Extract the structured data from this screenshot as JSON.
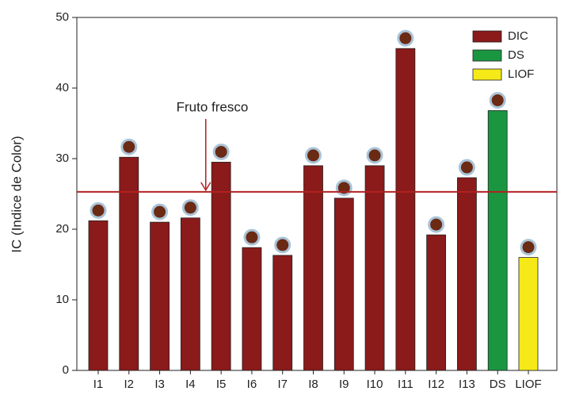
{
  "chart_data": {
    "type": "bar",
    "y_label": "IC (Indice de Color)",
    "categories": [
      "I1",
      "I2",
      "I3",
      "I4",
      "I5",
      "I6",
      "I7",
      "I8",
      "I9",
      "I10",
      "I11",
      "I12",
      "I13",
      "DS",
      "LIOF"
    ],
    "series": [
      {
        "name": "DIC",
        "color": "#8b1a1a",
        "values": [
          21.2,
          30.2,
          21.0,
          21.6,
          29.5,
          17.4,
          16.3,
          29.0,
          24.4,
          29.0,
          45.6,
          19.2,
          27.3,
          null,
          null
        ]
      },
      {
        "name": "DS",
        "color": "#1a9641",
        "values": [
          null,
          null,
          null,
          null,
          null,
          null,
          null,
          null,
          null,
          null,
          null,
          null,
          null,
          36.8,
          null
        ]
      },
      {
        "name": "LIOF",
        "color": "#f5e918",
        "values": [
          null,
          null,
          null,
          null,
          null,
          null,
          null,
          null,
          null,
          null,
          null,
          null,
          null,
          null,
          16.0
        ]
      }
    ],
    "reference_line": {
      "value": 25.3,
      "label": "Fruto fresco",
      "color": "#b22222"
    },
    "ylim": [
      0,
      50
    ],
    "yticks": [
      0,
      10,
      20,
      30,
      40,
      50
    ],
    "grid": false,
    "legend": "top-right"
  }
}
